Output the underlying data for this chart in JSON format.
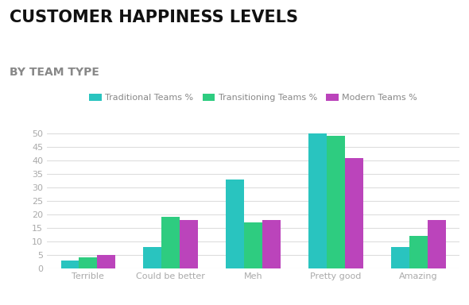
{
  "title": "CUSTOMER HAPPINESS LEVELS",
  "subtitle": "BY TEAM TYPE",
  "categories": [
    "Terrible",
    "Could be better",
    "Meh",
    "Pretty good",
    "Amazing"
  ],
  "series": [
    {
      "name": "Traditional Teams %",
      "color": "#29C4BF",
      "values": [
        3,
        8,
        33,
        50,
        8
      ]
    },
    {
      "name": "Transitioning Teams %",
      "color": "#2ECC80",
      "values": [
        4,
        19,
        17,
        49,
        12
      ]
    },
    {
      "name": "Modern Teams %",
      "color": "#BB44BB",
      "values": [
        5,
        18,
        18,
        41,
        18
      ]
    }
  ],
  "ylim": [
    0,
    52
  ],
  "yticks": [
    0,
    5,
    10,
    15,
    20,
    25,
    30,
    35,
    40,
    45,
    50
  ],
  "background_color": "#ffffff",
  "grid_color": "#dddddd",
  "title_fontsize": 15,
  "subtitle_fontsize": 10,
  "tick_label_color": "#aaaaaa",
  "bar_width": 0.22,
  "legend_fontsize": 8
}
